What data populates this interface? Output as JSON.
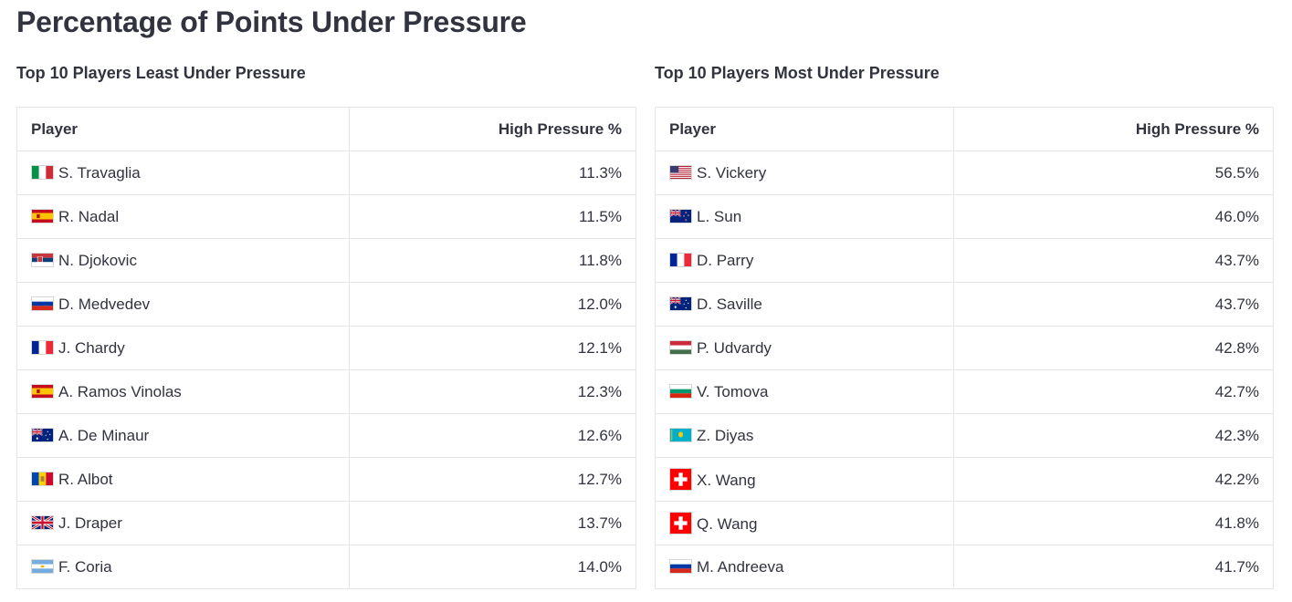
{
  "page": {
    "title": "Percentage of Points Under Pressure"
  },
  "left_table": {
    "title": "Top 10 Players Least Under Pressure",
    "columns": [
      "Player",
      "High Pressure %"
    ],
    "rows": [
      {
        "flag": "italy-flag",
        "player": "S. Travaglia",
        "value": "11.3%"
      },
      {
        "flag": "spain-flag",
        "player": "R. Nadal",
        "value": "11.5%"
      },
      {
        "flag": "serbia-flag",
        "player": "N. Djokovic",
        "value": "11.8%"
      },
      {
        "flag": "russia-flag",
        "player": "D. Medvedev",
        "value": "12.0%"
      },
      {
        "flag": "france-flag",
        "player": "J. Chardy",
        "value": "12.1%"
      },
      {
        "flag": "spain-flag",
        "player": "A. Ramos Vinolas",
        "value": "12.3%"
      },
      {
        "flag": "australia-flag",
        "player": "A. De Minaur",
        "value": "12.6%"
      },
      {
        "flag": "moldova-flag",
        "player": "R. Albot",
        "value": "12.7%"
      },
      {
        "flag": "uk-flag",
        "player": "J. Draper",
        "value": "13.7%"
      },
      {
        "flag": "argentina-flag",
        "player": "F. Coria",
        "value": "14.0%"
      }
    ]
  },
  "right_table": {
    "title": "Top 10 Players Most Under Pressure",
    "columns": [
      "Player",
      "High Pressure %"
    ],
    "rows": [
      {
        "flag": "usa-flag",
        "player": "S. Vickery",
        "value": "56.5%"
      },
      {
        "flag": "new-zealand-flag",
        "player": "L. Sun",
        "value": "46.0%"
      },
      {
        "flag": "france-flag",
        "player": "D. Parry",
        "value": "43.7%"
      },
      {
        "flag": "australia-flag",
        "player": "D. Saville",
        "value": "43.7%"
      },
      {
        "flag": "hungary-flag",
        "player": "P. Udvardy",
        "value": "42.8%"
      },
      {
        "flag": "bulgaria-flag",
        "player": "V. Tomova",
        "value": "42.7%"
      },
      {
        "flag": "kazakhstan-flag",
        "player": "Z. Diyas",
        "value": "42.3%"
      },
      {
        "flag": "switzerland-flag",
        "player": "X. Wang",
        "value": "42.2%"
      },
      {
        "flag": "switzerland-flag",
        "player": "Q. Wang",
        "value": "41.8%"
      },
      {
        "flag": "russia-flag",
        "player": "M. Andreeva",
        "value": "41.7%"
      }
    ]
  }
}
